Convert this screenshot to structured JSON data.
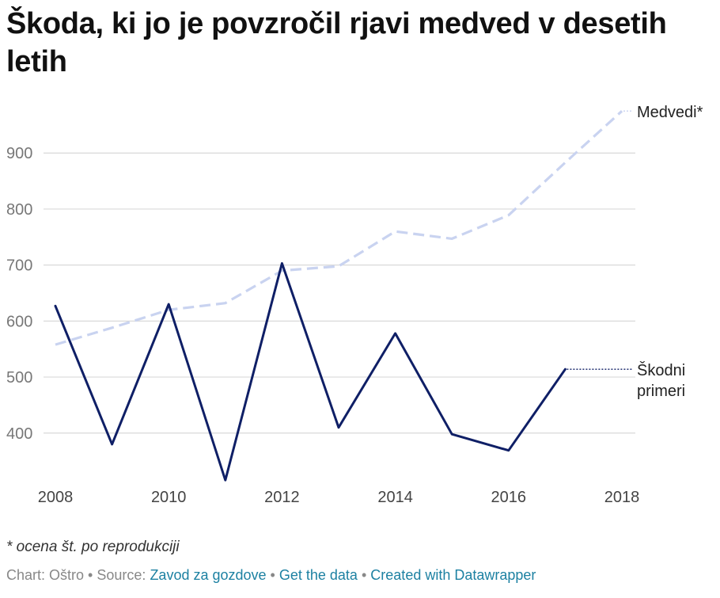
{
  "title": "Škoda, ki jo je povzročil rjavi medved v desetih letih",
  "note": "* ocena št. po reprodukciji",
  "footer": {
    "chart_label": "Chart: Oštro",
    "source_label": "Source:",
    "source_link": "Zavod za gozdove",
    "get_data": "Get the data",
    "created_with": "Created with Datawrapper",
    "separator": "•"
  },
  "chart_data": {
    "type": "line",
    "x": [
      2008,
      2009,
      2010,
      2011,
      2012,
      2013,
      2014,
      2015,
      2016,
      2017,
      2018
    ],
    "x_ticks": [
      "2008",
      "2010",
      "2012",
      "2014",
      "2016",
      "2018"
    ],
    "y_ticks": [
      "400",
      "500",
      "600",
      "700",
      "800",
      "900"
    ],
    "ylim": [
      300,
      1000
    ],
    "grid": true,
    "series": [
      {
        "name": "Medvedi*",
        "values": [
          558,
          588,
          620,
          632,
          690,
          698,
          760,
          747,
          789,
          883,
          975
        ],
        "color": "#c9d3f0",
        "dashed": true
      },
      {
        "name": "Škodni primeri",
        "name_lines": [
          "Škodni",
          "primeri"
        ],
        "values": [
          627,
          380,
          630,
          316,
          703,
          410,
          578,
          398,
          369,
          514,
          null
        ],
        "color": "#0f1f66",
        "dashed": false
      }
    ]
  }
}
